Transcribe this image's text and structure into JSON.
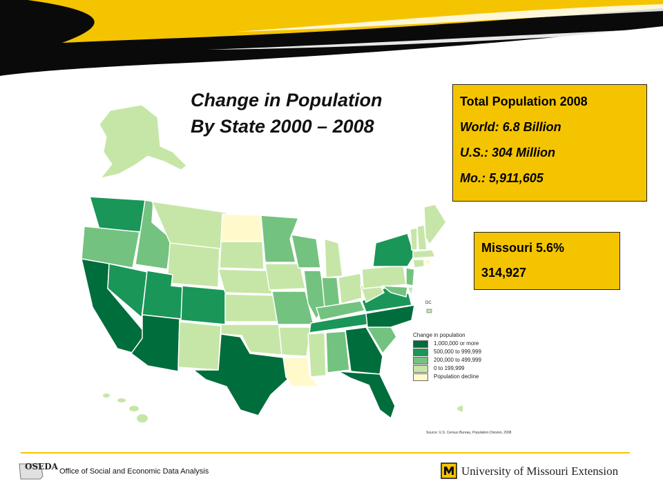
{
  "slide": {
    "title_line1": "Change in Population",
    "title_line2": "By State 2000 – 2008"
  },
  "totals_panel": {
    "heading": "Total Population 2008",
    "world": "World:  6.8 Billion",
    "us": "U.S.:  304 Million",
    "mo": "Mo.:     5,911,605"
  },
  "missouri_panel": {
    "line1": "Missouri 5.6%",
    "line2": "314,927"
  },
  "map": {
    "legend_title": "Change in population",
    "legend_items": [
      {
        "label": "1,000,000 or more",
        "color": "#006d3c"
      },
      {
        "label": "500,000 to 999,999",
        "color": "#1a9658"
      },
      {
        "label": "200,000 to 499,999",
        "color": "#74c27f"
      },
      {
        "label": "0 to 199,999",
        "color": "#c6e6a7"
      },
      {
        "label": "Population decline",
        "color": "#fff9cc"
      }
    ],
    "dc_label": "DC",
    "source": "Source: U.S. Census Bureau, Population Division, 2008"
  },
  "footer": {
    "oseda_logo_text": "OSEDA",
    "office_text": "Office of Social and Economic Data Analysis",
    "university_text": "University of Missouri Extension"
  },
  "colors": {
    "accent_yellow": "#f5c400",
    "banner_black": "#0a0a0a"
  }
}
